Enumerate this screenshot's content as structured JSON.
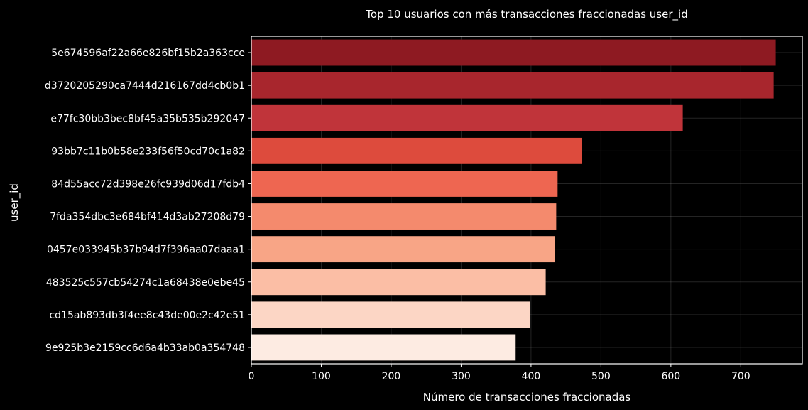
{
  "chart_data": {
    "type": "bar",
    "orientation": "horizontal",
    "title": "Top 10 usuarios con más transacciones fraccionadas user_id",
    "xlabel": "Número de transacciones fraccionadas",
    "ylabel": "user_id",
    "xlim": [
      0,
      788
    ],
    "xticks": [
      0,
      100,
      200,
      300,
      400,
      500,
      600,
      700
    ],
    "grid": true,
    "categories": [
      "5e674596af22a66e826bf15b2a363cce",
      "d3720205290ca7444d216167dd4cb0b1",
      "e77fc30bb3bec8bf45a35b535b292047",
      "93bb7c11b0b58e233f56f50cd70c1a82",
      "84d55acc72d398e26fc939d06d17fdb4",
      "7fda354dbc3e684bf414d3ab27208d79",
      "0457e033945b37b94d7f396aa07daaa1",
      "483525c557cb54274c1a68438e0ebe45",
      "cd15ab893db3f4ee8c43de00e2c42e51",
      "9e925b3e2159cc6d6a4b33ab0a354748"
    ],
    "values": [
      750,
      747,
      617,
      473,
      438,
      436,
      434,
      421,
      399,
      378
    ],
    "colors": [
      "#8e1a22",
      "#a8262d",
      "#c0343a",
      "#dd4b3d",
      "#ee6651",
      "#f48a6d",
      "#f8a586",
      "#fbbea5",
      "#fcd6c5",
      "#fdebe2"
    ]
  }
}
